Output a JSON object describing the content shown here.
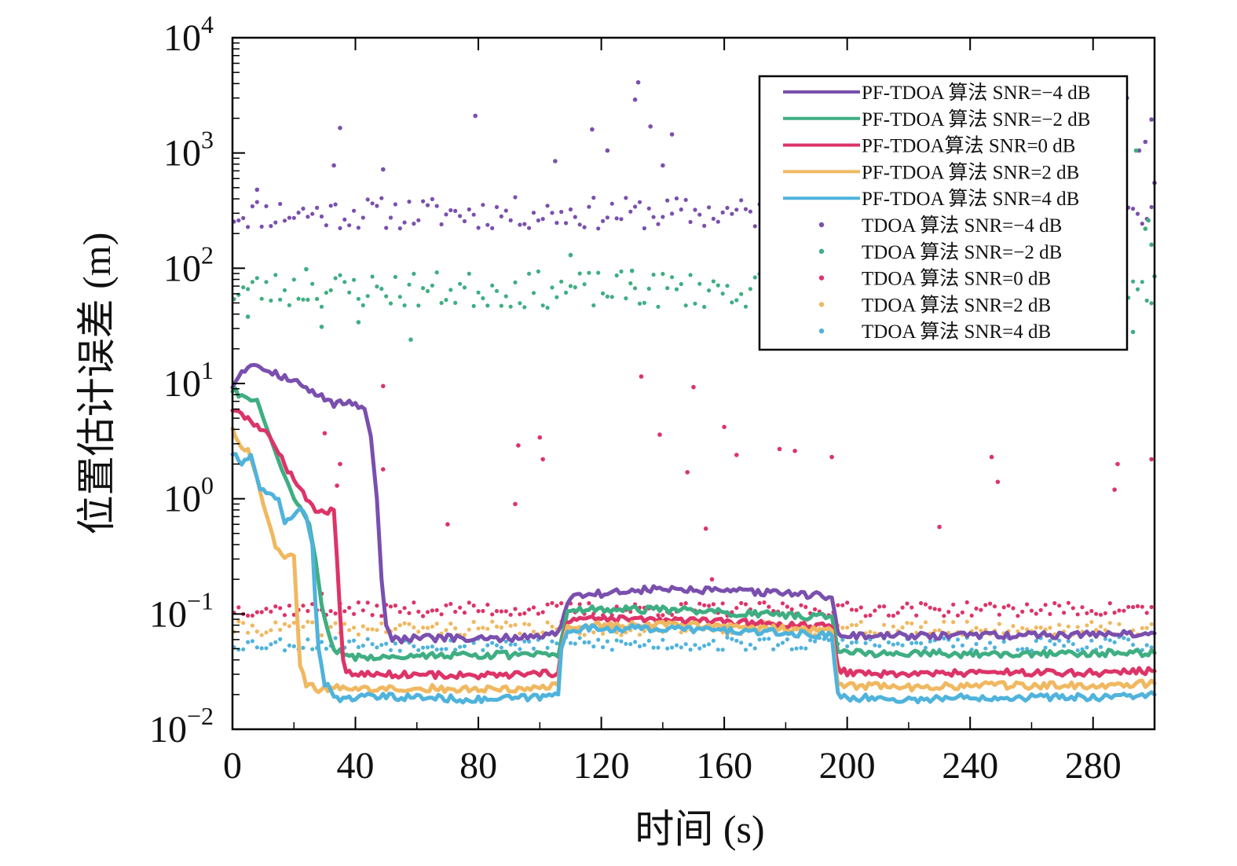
{
  "chart_data": {
    "type": "line",
    "title": "",
    "xlabel": "时间 (s)",
    "ylabel": "位置估计误差 (m)",
    "xlim": [
      0,
      300
    ],
    "ylim": [
      0.01,
      10000
    ],
    "yscale": "log",
    "grid": false,
    "legend_position": "top-right",
    "x_ticks": [
      0,
      40,
      80,
      120,
      160,
      200,
      240,
      280
    ],
    "y_ticks": [
      {
        "value": 0.01,
        "mantissa": "10",
        "exponent": "−2"
      },
      {
        "value": 0.1,
        "mantissa": "10",
        "exponent": "−1"
      },
      {
        "value": 1,
        "mantissa": "10",
        "exponent": "0"
      },
      {
        "value": 10,
        "mantissa": "10",
        "exponent": "1"
      },
      {
        "value": 100,
        "mantissa": "10",
        "exponent": "2"
      },
      {
        "value": 1000,
        "mantissa": "10",
        "exponent": "3"
      },
      {
        "value": 10000,
        "mantissa": "10",
        "exponent": "4"
      }
    ],
    "series": [
      {
        "name": "PF-TDOA 算法 SNR=−4 dB",
        "kind": "line",
        "color": "#7a4fae",
        "points": [
          [
            0,
            9.5
          ],
          [
            3,
            13
          ],
          [
            7,
            15
          ],
          [
            12,
            13
          ],
          [
            18,
            11
          ],
          [
            22,
            10
          ],
          [
            25,
            8.5
          ],
          [
            30,
            7.5
          ],
          [
            33,
            6.7
          ],
          [
            36,
            6.8
          ],
          [
            40,
            6.8
          ],
          [
            43,
            6
          ],
          [
            45,
            3.5
          ],
          [
            47,
            1
          ],
          [
            48.5,
            0.2
          ],
          [
            50,
            0.08
          ],
          [
            52,
            0.062
          ],
          [
            55,
            0.06
          ],
          [
            60,
            0.062
          ],
          [
            70,
            0.062
          ],
          [
            80,
            0.06
          ],
          [
            90,
            0.062
          ],
          [
            100,
            0.065
          ],
          [
            106,
            0.068
          ],
          [
            107,
            0.08
          ],
          [
            109,
            0.13
          ],
          [
            112,
            0.15
          ],
          [
            120,
            0.15
          ],
          [
            130,
            0.16
          ],
          [
            140,
            0.165
          ],
          [
            150,
            0.16
          ],
          [
            160,
            0.158
          ],
          [
            170,
            0.155
          ],
          [
            180,
            0.152
          ],
          [
            190,
            0.145
          ],
          [
            195,
            0.14
          ],
          [
            196,
            0.1
          ],
          [
            197,
            0.068
          ],
          [
            200,
            0.065
          ],
          [
            210,
            0.064
          ],
          [
            220,
            0.065
          ],
          [
            230,
            0.064
          ],
          [
            240,
            0.066
          ],
          [
            250,
            0.065
          ],
          [
            260,
            0.066
          ],
          [
            270,
            0.066
          ],
          [
            280,
            0.067
          ],
          [
            290,
            0.067
          ],
          [
            300,
            0.068
          ]
        ]
      },
      {
        "name": "PF-TDOA 算法 SNR=−2 dB",
        "kind": "line",
        "color": "#3fae82",
        "points": [
          [
            0,
            8.8
          ],
          [
            4,
            7.5
          ],
          [
            8,
            6.8
          ],
          [
            10,
            5
          ],
          [
            13,
            3
          ],
          [
            16,
            1.8
          ],
          [
            19,
            1.2
          ],
          [
            22,
            0.85
          ],
          [
            25,
            0.6
          ],
          [
            27,
            0.3
          ],
          [
            29,
            0.12
          ],
          [
            31,
            0.07
          ],
          [
            33,
            0.05
          ],
          [
            36,
            0.045
          ],
          [
            40,
            0.042
          ],
          [
            50,
            0.043
          ],
          [
            60,
            0.044
          ],
          [
            80,
            0.044
          ],
          [
            100,
            0.044
          ],
          [
            106,
            0.045
          ],
          [
            107,
            0.06
          ],
          [
            109,
            0.1
          ],
          [
            112,
            0.11
          ],
          [
            130,
            0.11
          ],
          [
            150,
            0.108
          ],
          [
            170,
            0.1
          ],
          [
            190,
            0.095
          ],
          [
            195,
            0.095
          ],
          [
            196,
            0.07
          ],
          [
            197,
            0.05
          ],
          [
            200,
            0.046
          ],
          [
            220,
            0.045
          ],
          [
            240,
            0.045
          ],
          [
            260,
            0.045
          ],
          [
            280,
            0.046
          ],
          [
            300,
            0.046
          ]
        ]
      },
      {
        "name": "PF-TDOA算法 SNR=0 dB",
        "kind": "line",
        "color": "#dd3468",
        "points": [
          [
            0,
            6
          ],
          [
            3,
            5.2
          ],
          [
            8,
            4.4
          ],
          [
            12,
            3.5
          ],
          [
            16,
            2.2
          ],
          [
            18,
            1.8
          ],
          [
            21,
            1.4
          ],
          [
            24,
            1
          ],
          [
            27,
            0.78
          ],
          [
            30,
            0.78
          ],
          [
            33,
            0.8
          ],
          [
            34,
            0.3
          ],
          [
            35,
            0.1
          ],
          [
            36,
            0.04
          ],
          [
            37,
            0.032
          ],
          [
            40,
            0.03
          ],
          [
            60,
            0.03
          ],
          [
            80,
            0.029
          ],
          [
            100,
            0.03
          ],
          [
            106,
            0.031
          ],
          [
            107,
            0.05
          ],
          [
            109,
            0.085
          ],
          [
            112,
            0.09
          ],
          [
            130,
            0.09
          ],
          [
            150,
            0.087
          ],
          [
            170,
            0.083
          ],
          [
            190,
            0.078
          ],
          [
            195,
            0.077
          ],
          [
            196,
            0.05
          ],
          [
            197,
            0.034
          ],
          [
            200,
            0.031
          ],
          [
            220,
            0.03
          ],
          [
            240,
            0.031
          ],
          [
            260,
            0.031
          ],
          [
            280,
            0.031
          ],
          [
            300,
            0.032
          ]
        ]
      },
      {
        "name": "PF-TDOA  算法 SNR=2 dB",
        "kind": "line",
        "color": "#f0b860",
        "points": [
          [
            0,
            4.2
          ],
          [
            2,
            3
          ],
          [
            5,
            2.7
          ],
          [
            8,
            1.5
          ],
          [
            10,
            0.9
          ],
          [
            12,
            0.6
          ],
          [
            14,
            0.4
          ],
          [
            16,
            0.33
          ],
          [
            18,
            0.32
          ],
          [
            20,
            0.32
          ],
          [
            21,
            0.1
          ],
          [
            22,
            0.035
          ],
          [
            24,
            0.025
          ],
          [
            28,
            0.022
          ],
          [
            35,
            0.023
          ],
          [
            40,
            0.022
          ],
          [
            60,
            0.023
          ],
          [
            80,
            0.022
          ],
          [
            100,
            0.023
          ],
          [
            106,
            0.024
          ],
          [
            107,
            0.05
          ],
          [
            109,
            0.078
          ],
          [
            112,
            0.08
          ],
          [
            130,
            0.08
          ],
          [
            150,
            0.08
          ],
          [
            170,
            0.076
          ],
          [
            190,
            0.072
          ],
          [
            195,
            0.072
          ],
          [
            196,
            0.04
          ],
          [
            197,
            0.025
          ],
          [
            200,
            0.024
          ],
          [
            220,
            0.023
          ],
          [
            240,
            0.024
          ],
          [
            260,
            0.024
          ],
          [
            280,
            0.024
          ],
          [
            300,
            0.025
          ]
        ]
      },
      {
        "name": "PF-TDOA 算法 SNR=4 dB",
        "kind": "line",
        "color": "#4fb3dc",
        "points": [
          [
            0,
            2.5
          ],
          [
            3,
            2
          ],
          [
            6,
            2.4
          ],
          [
            9,
            1.2
          ],
          [
            12,
            1.05
          ],
          [
            15,
            1
          ],
          [
            17,
            0.6
          ],
          [
            20,
            0.75
          ],
          [
            22,
            0.85
          ],
          [
            24,
            0.7
          ],
          [
            26,
            0.4
          ],
          [
            27,
            0.12
          ],
          [
            28,
            0.05
          ],
          [
            30,
            0.025
          ],
          [
            33,
            0.02
          ],
          [
            36,
            0.018
          ],
          [
            40,
            0.019
          ],
          [
            60,
            0.019
          ],
          [
            80,
            0.018
          ],
          [
            100,
            0.019
          ],
          [
            106,
            0.02
          ],
          [
            107,
            0.05
          ],
          [
            109,
            0.073
          ],
          [
            112,
            0.075
          ],
          [
            130,
            0.075
          ],
          [
            150,
            0.074
          ],
          [
            170,
            0.07
          ],
          [
            190,
            0.066
          ],
          [
            195,
            0.065
          ],
          [
            196,
            0.035
          ],
          [
            197,
            0.02
          ],
          [
            200,
            0.019
          ],
          [
            220,
            0.018
          ],
          [
            240,
            0.019
          ],
          [
            260,
            0.019
          ],
          [
            280,
            0.019
          ],
          [
            300,
            0.02
          ]
        ]
      },
      {
        "name": "TDOA 算法 SNR=−4 dB",
        "kind": "scatter",
        "color": "#7a4fae",
        "base": 300,
        "jitter": 0.14,
        "seed": 11,
        "outliers": [
          [
            8,
            480
          ],
          [
            33,
            780
          ],
          [
            35,
            1650
          ],
          [
            49,
            720
          ],
          [
            79,
            2100
          ],
          [
            105,
            850
          ],
          [
            117,
            1600
          ],
          [
            122,
            1050
          ],
          [
            131,
            2900
          ],
          [
            132,
            4100
          ],
          [
            136,
            1700
          ],
          [
            140,
            780
          ],
          [
            143,
            1450
          ],
          [
            278,
            1950
          ],
          [
            291,
            3000
          ],
          [
            295,
            1050
          ],
          [
            297,
            1250
          ],
          [
            299,
            1950
          ],
          [
            300,
            550
          ]
        ]
      },
      {
        "name": "TDOA 算法 SNR=−2 dB",
        "kind": "scatter",
        "color": "#3fae82",
        "base": 65,
        "jitter": 0.16,
        "seed": 23,
        "outliers": [
          [
            5,
            38
          ],
          [
            24,
            98
          ],
          [
            29,
            31
          ],
          [
            41,
            34
          ],
          [
            58,
            24
          ],
          [
            110,
            130
          ],
          [
            130,
            95
          ],
          [
            293,
            28
          ],
          [
            294,
            1050
          ],
          [
            297,
            220
          ],
          [
            298,
            260
          ],
          [
            299,
            160
          ],
          [
            300,
            85
          ]
        ]
      },
      {
        "name": "TDOA 算法 SNR=0 dB",
        "kind": "scatter",
        "color": "#dd3468",
        "base": 0.11,
        "jitter": 0.06,
        "seed": 37,
        "outliers": [
          [
            30,
            3.7
          ],
          [
            34,
            1.3
          ],
          [
            35,
            2
          ],
          [
            29,
            0.15
          ],
          [
            49,
            9.5
          ],
          [
            49,
            1.8
          ],
          [
            70,
            0.6
          ],
          [
            92,
            0.9
          ],
          [
            93,
            2.9
          ],
          [
            100,
            3.4
          ],
          [
            101,
            2.2
          ],
          [
            133,
            11.5
          ],
          [
            139,
            3.6
          ],
          [
            148,
            1.7
          ],
          [
            150,
            9.3
          ],
          [
            154,
            0.55
          ],
          [
            156,
            0.2
          ],
          [
            160,
            4.2
          ],
          [
            164,
            2.4
          ],
          [
            178,
            2.7
          ],
          [
            183,
            2.6
          ],
          [
            195,
            2.3
          ],
          [
            230,
            0.57
          ],
          [
            247,
            2.3
          ],
          [
            249,
            1.4
          ],
          [
            287,
            1.2
          ],
          [
            288,
            2
          ],
          [
            299,
            2.2
          ]
        ]
      },
      {
        "name": "TDOA 算法 SNR=2 dB",
        "kind": "scatter",
        "color": "#f0b860",
        "base": 0.075,
        "jitter": 0.06,
        "seed": 41,
        "outliers": []
      },
      {
        "name": "TDOA 算法 SNR=4 dB",
        "kind": "scatter",
        "color": "#4fb3dc",
        "base": 0.055,
        "jitter": 0.06,
        "seed": 53,
        "outliers": []
      }
    ]
  }
}
